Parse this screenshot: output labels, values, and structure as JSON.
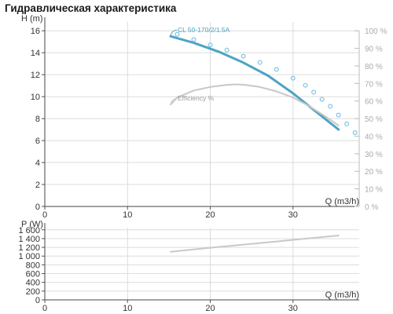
{
  "header": {
    "title": "Гидравлическая характеристика"
  },
  "colors": {
    "head_curve": "#4fa3c4",
    "npsh_curve": "#7cc4e4",
    "efficiency_curve": "#c8c8c8",
    "power_curve": "#c8c8c8",
    "grid": "#dcdcdc",
    "axis_text": "#333333",
    "right_axis_text": "#aaaaaa"
  },
  "chart_data": [
    {
      "type": "line",
      "title": "",
      "xlabel": "Q (m3/h)",
      "ylabel": "H (m)",
      "y2label": "%",
      "xlim": [
        0,
        38
      ],
      "ylim": [
        0,
        16.8
      ],
      "y2lim": [
        0,
        105
      ],
      "x_ticks": [
        "0",
        "10",
        "20",
        "30"
      ],
      "y_ticks": [
        "0",
        "2",
        "4",
        "6",
        "8",
        "10",
        "12",
        "14",
        "16"
      ],
      "y2_ticks": [
        "0 %",
        "10 %",
        "20 %",
        "30 %",
        "40 %",
        "50 %",
        "60 %",
        "70 %",
        "80 %",
        "90 %",
        "100 %"
      ],
      "grid": true,
      "series": [
        {
          "name": "CL 50-170/2/1.5A",
          "axis": "left",
          "style": "solid",
          "x": [
            15.2,
            18,
            21,
            24,
            27,
            30,
            33,
            35.5
          ],
          "y": [
            15.5,
            14.9,
            14.1,
            13.1,
            11.9,
            10.3,
            8.5,
            7.0
          ]
        },
        {
          "name": "",
          "axis": "right",
          "style": "dotted",
          "x": [
            16,
            18,
            20,
            22,
            24,
            26,
            28,
            30,
            31.5,
            32.5,
            33.5,
            34.5,
            35.5,
            36.5,
            37.5
          ],
          "y": [
            98,
            95,
            92,
            89,
            85.5,
            82,
            78,
            73,
            69,
            65,
            61,
            57,
            52,
            47,
            42
          ]
        },
        {
          "name": "Efficiency %",
          "axis": "right",
          "style": "solid",
          "x": [
            15.2,
            16,
            18,
            20,
            22,
            23,
            24,
            26,
            28,
            30,
            32,
            34,
            35.5
          ],
          "y": [
            58,
            62,
            66,
            68,
            69.2,
            69.5,
            69.3,
            68,
            65.5,
            62,
            57,
            51,
            46
          ]
        }
      ]
    },
    {
      "type": "line",
      "title": "",
      "xlabel": "Q (m3/h)",
      "ylabel": "P (W)",
      "xlim": [
        0,
        38
      ],
      "ylim": [
        0,
        1650
      ],
      "x_ticks": [
        "0",
        "10",
        "20",
        "30"
      ],
      "y_ticks": [
        "0",
        "200",
        "400",
        "600",
        "800",
        "1 000",
        "1 200",
        "1 400",
        "1 600"
      ],
      "grid": true,
      "series": [
        {
          "name": "",
          "x": [
            15.2,
            20,
            25,
            30,
            35.5
          ],
          "y": [
            1100,
            1190,
            1280,
            1370,
            1470
          ]
        }
      ]
    }
  ]
}
